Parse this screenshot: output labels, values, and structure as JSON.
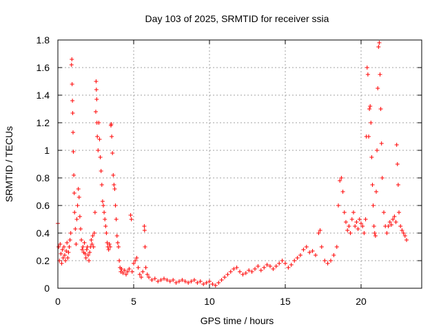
{
  "chart_data": {
    "type": "scatter",
    "title": "Day 103 of 2025, SRMTID for receiver ssia",
    "xlabel": "GPS time / hours",
    "ylabel": "SRMTID / TECUs",
    "xlim": [
      0,
      24
    ],
    "ylim": [
      0,
      1.8
    ],
    "xticks": [
      0,
      5,
      10,
      15,
      20
    ],
    "xtick_labels": [
      "0",
      "5",
      "10",
      "15",
      "20"
    ],
    "yticks": [
      0,
      0.2,
      0.4,
      0.6,
      0.8,
      1.0,
      1.2,
      1.4,
      1.6,
      1.8
    ],
    "ytick_labels": [
      "0",
      "0.2",
      "0.4",
      "0.6",
      "0.8",
      "1",
      "1.2",
      "1.4",
      "1.6",
      "1.8"
    ],
    "grid": true,
    "marker": "+",
    "color": "#ff0000",
    "series": [
      {
        "name": "SRMTID",
        "points": [
          [
            0.0,
            0.47
          ],
          [
            0.05,
            0.3
          ],
          [
            0.1,
            0.2
          ],
          [
            0.15,
            0.32
          ],
          [
            0.2,
            0.25
          ],
          [
            0.25,
            0.18
          ],
          [
            0.3,
            0.28
          ],
          [
            0.35,
            0.22
          ],
          [
            0.4,
            0.3
          ],
          [
            0.45,
            0.24
          ],
          [
            0.5,
            0.2
          ],
          [
            0.55,
            0.27
          ],
          [
            0.6,
            0.33
          ],
          [
            0.65,
            0.22
          ],
          [
            0.7,
            0.26
          ],
          [
            0.75,
            0.3
          ],
          [
            0.8,
            0.35
          ],
          [
            0.85,
            0.4
          ],
          [
            0.9,
            1.62
          ],
          [
            0.92,
            1.66
          ],
          [
            0.94,
            1.48
          ],
          [
            0.96,
            1.36
          ],
          [
            0.98,
            1.27
          ],
          [
            1.0,
            1.13
          ],
          [
            1.02,
            0.99
          ],
          [
            1.05,
            0.82
          ],
          [
            1.08,
            0.69
          ],
          [
            1.1,
            0.55
          ],
          [
            1.15,
            0.43
          ],
          [
            1.2,
            0.32
          ],
          [
            1.25,
            0.5
          ],
          [
            1.3,
            0.6
          ],
          [
            1.35,
            0.72
          ],
          [
            1.4,
            0.66
          ],
          [
            1.45,
            0.52
          ],
          [
            1.5,
            0.43
          ],
          [
            1.55,
            0.35
          ],
          [
            1.6,
            0.28
          ],
          [
            1.65,
            0.3
          ],
          [
            1.7,
            0.26
          ],
          [
            1.75,
            0.33
          ],
          [
            1.8,
            0.25
          ],
          [
            1.85,
            0.22
          ],
          [
            1.9,
            0.28
          ],
          [
            1.95,
            0.3
          ],
          [
            2.0,
            0.24
          ],
          [
            2.05,
            0.2
          ],
          [
            2.1,
            0.26
          ],
          [
            2.15,
            0.3
          ],
          [
            2.2,
            0.35
          ],
          [
            2.25,
            0.32
          ],
          [
            2.3,
            0.38
          ],
          [
            2.35,
            0.3
          ],
          [
            2.4,
            0.4
          ],
          [
            2.45,
            0.55
          ],
          [
            2.5,
            1.28
          ],
          [
            2.52,
            1.5
          ],
          [
            2.54,
            1.44
          ],
          [
            2.56,
            1.37
          ],
          [
            2.58,
            1.2
          ],
          [
            2.6,
            1.1
          ],
          [
            2.65,
            1.0
          ],
          [
            2.7,
            1.2
          ],
          [
            2.75,
            1.08
          ],
          [
            2.8,
            0.95
          ],
          [
            2.85,
            0.85
          ],
          [
            2.9,
            0.75
          ],
          [
            2.95,
            0.63
          ],
          [
            3.0,
            0.6
          ],
          [
            3.05,
            0.55
          ],
          [
            3.1,
            0.5
          ],
          [
            3.15,
            0.45
          ],
          [
            3.2,
            0.4
          ],
          [
            3.25,
            0.33
          ],
          [
            3.3,
            0.3
          ],
          [
            3.35,
            0.28
          ],
          [
            3.4,
            0.32
          ],
          [
            3.45,
            0.3
          ],
          [
            3.5,
            1.18
          ],
          [
            3.52,
            1.19
          ],
          [
            3.55,
            1.1
          ],
          [
            3.6,
            0.98
          ],
          [
            3.65,
            0.82
          ],
          [
            3.7,
            0.75
          ],
          [
            3.75,
            0.72
          ],
          [
            3.8,
            0.6
          ],
          [
            3.85,
            0.5
          ],
          [
            3.9,
            0.38
          ],
          [
            3.95,
            0.33
          ],
          [
            4.0,
            0.3
          ],
          [
            4.05,
            0.2
          ],
          [
            4.1,
            0.15
          ],
          [
            4.15,
            0.12
          ],
          [
            4.2,
            0.14
          ],
          [
            4.3,
            0.11
          ],
          [
            4.4,
            0.13
          ],
          [
            4.5,
            0.1
          ],
          [
            4.6,
            0.12
          ],
          [
            4.7,
            0.14
          ],
          [
            4.8,
            0.53
          ],
          [
            4.85,
            0.5
          ],
          [
            4.9,
            0.12
          ],
          [
            5.0,
            0.18
          ],
          [
            5.1,
            0.2
          ],
          [
            5.2,
            0.22
          ],
          [
            5.3,
            0.15
          ],
          [
            5.4,
            0.1
          ],
          [
            5.5,
            0.08
          ],
          [
            5.6,
            0.12
          ],
          [
            5.7,
            0.45
          ],
          [
            5.72,
            0.42
          ],
          [
            5.75,
            0.3
          ],
          [
            5.8,
            0.15
          ],
          [
            5.9,
            0.1
          ],
          [
            6.0,
            0.08
          ],
          [
            6.2,
            0.06
          ],
          [
            6.4,
            0.07
          ],
          [
            6.6,
            0.05
          ],
          [
            6.8,
            0.06
          ],
          [
            7.0,
            0.07
          ],
          [
            7.2,
            0.06
          ],
          [
            7.4,
            0.05
          ],
          [
            7.6,
            0.06
          ],
          [
            7.8,
            0.04
          ],
          [
            8.0,
            0.05
          ],
          [
            8.2,
            0.06
          ],
          [
            8.4,
            0.05
          ],
          [
            8.6,
            0.04
          ],
          [
            8.8,
            0.05
          ],
          [
            9.0,
            0.06
          ],
          [
            9.2,
            0.04
          ],
          [
            9.4,
            0.05
          ],
          [
            9.6,
            0.03
          ],
          [
            9.8,
            0.04
          ],
          [
            10.0,
            0.05
          ],
          [
            10.2,
            0.03
          ],
          [
            10.4,
            0.02
          ],
          [
            10.6,
            0.04
          ],
          [
            10.8,
            0.06
          ],
          [
            11.0,
            0.08
          ],
          [
            11.2,
            0.1
          ],
          [
            11.4,
            0.12
          ],
          [
            11.6,
            0.14
          ],
          [
            11.8,
            0.15
          ],
          [
            12.0,
            0.12
          ],
          [
            12.2,
            0.1
          ],
          [
            12.4,
            0.11
          ],
          [
            12.6,
            0.13
          ],
          [
            12.8,
            0.12
          ],
          [
            13.0,
            0.14
          ],
          [
            13.2,
            0.16
          ],
          [
            13.4,
            0.13
          ],
          [
            13.6,
            0.15
          ],
          [
            13.8,
            0.17
          ],
          [
            14.0,
            0.16
          ],
          [
            14.2,
            0.14
          ],
          [
            14.4,
            0.16
          ],
          [
            14.6,
            0.18
          ],
          [
            14.8,
            0.2
          ],
          [
            15.0,
            0.18
          ],
          [
            15.2,
            0.15
          ],
          [
            15.4,
            0.17
          ],
          [
            15.6,
            0.2
          ],
          [
            15.8,
            0.22
          ],
          [
            16.0,
            0.24
          ],
          [
            16.2,
            0.28
          ],
          [
            16.4,
            0.3
          ],
          [
            16.6,
            0.26
          ],
          [
            16.8,
            0.27
          ],
          [
            17.0,
            0.24
          ],
          [
            17.2,
            0.4
          ],
          [
            17.3,
            0.42
          ],
          [
            17.4,
            0.3
          ],
          [
            17.6,
            0.2
          ],
          [
            17.8,
            0.18
          ],
          [
            18.0,
            0.2
          ],
          [
            18.2,
            0.24
          ],
          [
            18.4,
            0.3
          ],
          [
            18.5,
            0.6
          ],
          [
            18.6,
            0.78
          ],
          [
            18.7,
            0.8
          ],
          [
            18.8,
            0.7
          ],
          [
            18.9,
            0.55
          ],
          [
            19.0,
            0.48
          ],
          [
            19.1,
            0.42
          ],
          [
            19.2,
            0.45
          ],
          [
            19.3,
            0.4
          ],
          [
            19.4,
            0.5
          ],
          [
            19.5,
            0.55
          ],
          [
            19.6,
            0.45
          ],
          [
            19.7,
            0.48
          ],
          [
            19.8,
            0.43
          ],
          [
            19.9,
            0.5
          ],
          [
            20.0,
            0.47
          ],
          [
            20.1,
            0.45
          ],
          [
            20.2,
            0.4
          ],
          [
            20.3,
            0.5
          ],
          [
            20.35,
            1.1
          ],
          [
            20.4,
            1.6
          ],
          [
            20.45,
            1.55
          ],
          [
            20.5,
            1.1
          ],
          [
            20.55,
            1.3
          ],
          [
            20.6,
            1.32
          ],
          [
            20.65,
            1.2
          ],
          [
            20.7,
            0.95
          ],
          [
            20.75,
            0.75
          ],
          [
            20.8,
            0.6
          ],
          [
            20.85,
            0.45
          ],
          [
            20.9,
            0.4
          ],
          [
            20.95,
            0.38
          ],
          [
            21.0,
            0.7
          ],
          [
            21.05,
            1.0
          ],
          [
            21.1,
            1.45
          ],
          [
            21.15,
            1.75
          ],
          [
            21.2,
            1.78
          ],
          [
            21.25,
            1.55
          ],
          [
            21.3,
            1.3
          ],
          [
            21.35,
            1.05
          ],
          [
            21.4,
            0.8
          ],
          [
            21.5,
            0.55
          ],
          [
            21.6,
            0.45
          ],
          [
            21.7,
            0.4
          ],
          [
            21.8,
            0.45
          ],
          [
            21.9,
            0.48
          ],
          [
            22.0,
            0.46
          ],
          [
            22.1,
            0.5
          ],
          [
            22.2,
            0.52
          ],
          [
            22.3,
            0.48
          ],
          [
            22.35,
            1.04
          ],
          [
            22.4,
            0.9
          ],
          [
            22.45,
            0.75
          ],
          [
            22.5,
            0.55
          ],
          [
            22.6,
            0.45
          ],
          [
            22.7,
            0.42
          ],
          [
            22.8,
            0.4
          ],
          [
            22.9,
            0.38
          ],
          [
            23.0,
            0.35
          ]
        ]
      }
    ]
  }
}
